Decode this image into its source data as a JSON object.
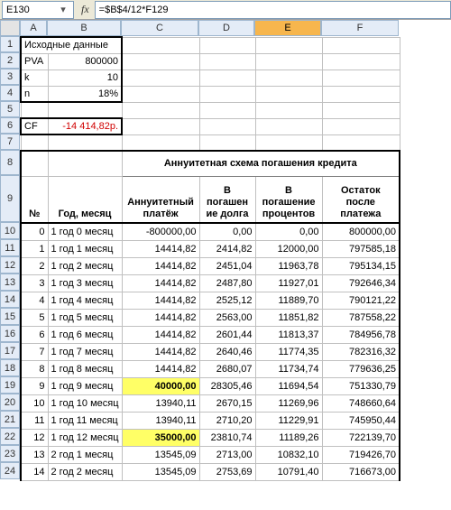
{
  "formula_bar": {
    "cell_ref": "E130",
    "fx_label": "fx",
    "formula": "=$B$4/12*F129"
  },
  "columns": {
    "labels": [
      "A",
      "B",
      "C",
      "D",
      "E",
      "F"
    ],
    "widths": [
      30,
      82,
      86,
      62,
      74,
      86
    ],
    "active_index": 4
  },
  "row_header_h": 18,
  "initial": {
    "title": "Исходные данные",
    "rows": [
      {
        "label": "PVA",
        "value": "800000"
      },
      {
        "label": "k",
        "value": "10"
      },
      {
        "label": "n",
        "value": "18%"
      }
    ],
    "cf_label": "CF",
    "cf_value": "-14 414,82р."
  },
  "schedule": {
    "title": "Аннуитетная схема погашения кредита",
    "headers": [
      "№",
      "Год, месяц",
      "Аннуитетный платёж",
      "В погашен ие долга",
      "В погашение процентов",
      "Остаток после платежа"
    ],
    "header_row_h": 52,
    "title_row_h": 28,
    "rows": [
      {
        "n": "0",
        "ym": "1 год 0 месяц",
        "pay": "-800000,00",
        "debt": "0,00",
        "int": "0,00",
        "bal": "800000,00",
        "hl": false
      },
      {
        "n": "1",
        "ym": "1 год 1 месяц",
        "pay": "14414,82",
        "debt": "2414,82",
        "int": "12000,00",
        "bal": "797585,18",
        "hl": false
      },
      {
        "n": "2",
        "ym": "1 год 2 месяц",
        "pay": "14414,82",
        "debt": "2451,04",
        "int": "11963,78",
        "bal": "795134,15",
        "hl": false
      },
      {
        "n": "3",
        "ym": "1 год 3 месяц",
        "pay": "14414,82",
        "debt": "2487,80",
        "int": "11927,01",
        "bal": "792646,34",
        "hl": false
      },
      {
        "n": "4",
        "ym": "1 год 4 месяц",
        "pay": "14414,82",
        "debt": "2525,12",
        "int": "11889,70",
        "bal": "790121,22",
        "hl": false
      },
      {
        "n": "5",
        "ym": "1 год 5 месяц",
        "pay": "14414,82",
        "debt": "2563,00",
        "int": "11851,82",
        "bal": "787558,22",
        "hl": false
      },
      {
        "n": "6",
        "ym": "1 год 6 месяц",
        "pay": "14414,82",
        "debt": "2601,44",
        "int": "11813,37",
        "bal": "784956,78",
        "hl": false
      },
      {
        "n": "7",
        "ym": "1 год 7 месяц",
        "pay": "14414,82",
        "debt": "2640,46",
        "int": "11774,35",
        "bal": "782316,32",
        "hl": false
      },
      {
        "n": "8",
        "ym": "1 год 8 месяц",
        "pay": "14414,82",
        "debt": "2680,07",
        "int": "11734,74",
        "bal": "779636,25",
        "hl": false
      },
      {
        "n": "9",
        "ym": "1 год 9 месяц",
        "pay": "40000,00",
        "debt": "28305,46",
        "int": "11694,54",
        "bal": "751330,79",
        "hl": true
      },
      {
        "n": "10",
        "ym": "1 год 10 месяц",
        "pay": "13940,11",
        "debt": "2670,15",
        "int": "11269,96",
        "bal": "748660,64",
        "hl": false
      },
      {
        "n": "11",
        "ym": "1 год 11 месяц",
        "pay": "13940,11",
        "debt": "2710,20",
        "int": "11229,91",
        "bal": "745950,44",
        "hl": false
      },
      {
        "n": "12",
        "ym": "1 год 12 месяц",
        "pay": "35000,00",
        "debt": "23810,74",
        "int": "11189,26",
        "bal": "722139,70",
        "hl": true
      },
      {
        "n": "13",
        "ym": "2 год 1 месяц",
        "pay": "13545,09",
        "debt": "2713,00",
        "int": "10832,10",
        "bal": "719426,70",
        "hl": false
      },
      {
        "n": "14",
        "ym": "2 год 2 месяц",
        "pay": "13545,09",
        "debt": "2753,69",
        "int": "10791,40",
        "bal": "716673,00",
        "hl": false
      }
    ],
    "data_row_h": 19
  },
  "row_labels": [
    "1",
    "2",
    "3",
    "4",
    "5",
    "6",
    "7",
    "8",
    "9",
    "10",
    "11",
    "12",
    "13",
    "14",
    "15",
    "16",
    "17",
    "18",
    "19",
    "20",
    "21",
    "22",
    "23",
    "24"
  ],
  "colors": {
    "header_bg": "#e4ecf7",
    "header_border": "#9eb6ce",
    "active_col": "#f7b64d",
    "highlight": "#ffff66",
    "red": "#d00000"
  }
}
